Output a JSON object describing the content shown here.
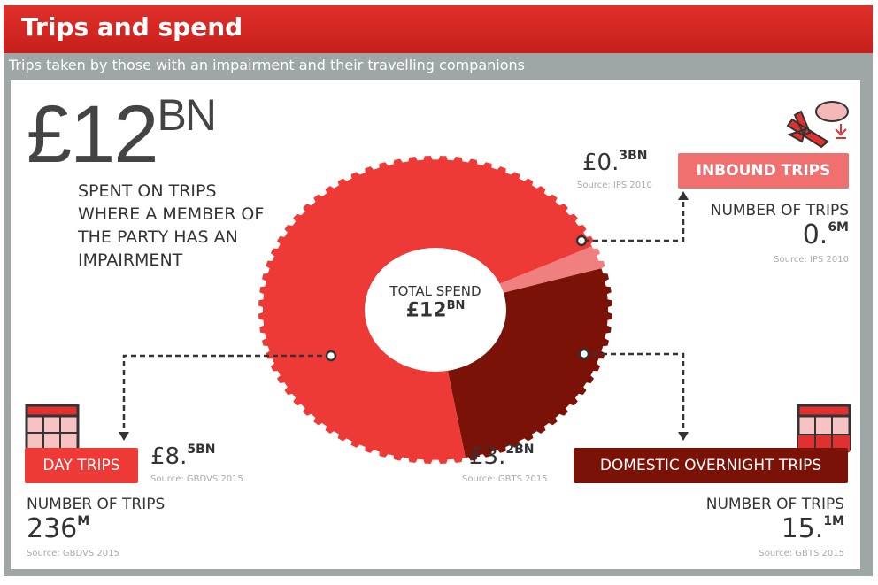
{
  "title": "Trips and spend",
  "subtitle": "Trips taken by those with an impairment and their travelling companions",
  "headline": {
    "currency": "£",
    "value": "12",
    "unit": "BN",
    "description": "SPENT ON TRIPS WHERE A MEMBER OF THE PARTY HAS AN IMPAIRMENT"
  },
  "center": {
    "label": "TOTAL SPEND",
    "value": "£12",
    "unit": "BN"
  },
  "segments": {
    "inbound": {
      "label": "INBOUND TRIPS",
      "spend_main": "£0.",
      "spend_sup": "3BN",
      "spend_source": "Source: IPS 2010",
      "trips_label": "NUMBER OF TRIPS",
      "trips_main": "0.",
      "trips_sup": "6M",
      "trips_source": "Source: IPS 2010"
    },
    "day": {
      "label": "DAY TRIPS",
      "spend_main": "£8.",
      "spend_sup": "5BN",
      "spend_source": "Source: GBDVS 2015",
      "trips_label": "NUMBER OF TRIPS",
      "trips_main": "236",
      "trips_sup": "M",
      "trips_source": "Source: GBDVS 2015"
    },
    "domestic": {
      "label": "DOMESTIC OVERNIGHT TRIPS",
      "spend_main": "£3.",
      "spend_sup": "2BN",
      "spend_source": "Source: GBTS 2015",
      "trips_label": "NUMBER OF TRIPS",
      "trips_main": "15.",
      "trips_sup": "1M",
      "trips_source": "Source: GBTS 2015"
    }
  },
  "chart_data": {
    "type": "pie",
    "title": "TOTAL SPEND £12BN",
    "unit": "£BN",
    "categories": [
      "Inbound trips",
      "Domestic overnight trips",
      "Day trips"
    ],
    "values": [
      0.3,
      3.2,
      8.5
    ],
    "colors": [
      "#f08080",
      "#7a1208",
      "#ee3a36"
    ]
  }
}
